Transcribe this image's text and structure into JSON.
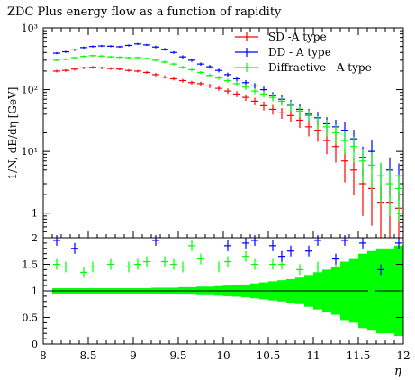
{
  "chart_data": [
    {
      "type": "line",
      "title": "ZDC Plus energy flow as a function of rapidity",
      "ylabel": "1/N, dE/dη [GeV]",
      "yscale": "log",
      "ylim": [
        0.4,
        1000
      ],
      "xlim": [
        8,
        12
      ],
      "y_ticks": [
        {
          "label": "1",
          "value": 1
        },
        {
          "label": "10¹",
          "value": 10
        },
        {
          "label": "10²",
          "value": 100
        },
        {
          "label": "10³",
          "value": 1000
        }
      ],
      "legend_position": "top-right",
      "series": [
        {
          "name": "SD -A type",
          "color": "#ff0000",
          "x": [
            8.15,
            8.25,
            8.35,
            8.45,
            8.55,
            8.65,
            8.75,
            8.85,
            8.95,
            9.05,
            9.15,
            9.25,
            9.35,
            9.45,
            9.55,
            9.65,
            9.75,
            9.85,
            9.95,
            10.05,
            10.15,
            10.25,
            10.35,
            10.45,
            10.55,
            10.65,
            10.75,
            10.85,
            10.95,
            11.05,
            11.15,
            11.25,
            11.35,
            11.45,
            11.55,
            11.65,
            11.75,
            11.85,
            11.95
          ],
          "y": [
            200,
            205,
            215,
            225,
            230,
            225,
            220,
            215,
            205,
            200,
            190,
            175,
            160,
            150,
            140,
            130,
            125,
            115,
            105,
            95,
            85,
            75,
            65,
            55,
            48,
            42,
            38,
            32,
            25,
            22,
            15,
            12,
            7,
            5,
            3,
            2.5,
            1.5,
            1.5,
            1.2
          ],
          "yerr_rel": [
            0.05,
            0.05,
            0.05,
            0.05,
            0.05,
            0.05,
            0.05,
            0.05,
            0.05,
            0.05,
            0.05,
            0.06,
            0.06,
            0.06,
            0.07,
            0.07,
            0.08,
            0.08,
            0.09,
            0.1,
            0.11,
            0.12,
            0.14,
            0.16,
            0.18,
            0.2,
            0.22,
            0.25,
            0.3,
            0.35,
            0.4,
            0.45,
            0.55,
            0.6,
            0.7,
            0.75,
            0.8,
            0.8,
            0.85
          ]
        },
        {
          "name": "DD - A type",
          "color": "#0000ff",
          "x": [
            8.15,
            8.25,
            8.35,
            8.45,
            8.55,
            8.65,
            8.75,
            8.85,
            8.95,
            9.05,
            9.15,
            9.25,
            9.35,
            9.45,
            9.55,
            9.65,
            9.75,
            9.85,
            9.95,
            10.05,
            10.15,
            10.25,
            10.35,
            10.45,
            10.55,
            10.65,
            10.75,
            10.85,
            10.95,
            11.05,
            11.15,
            11.25,
            11.35,
            11.45,
            11.55,
            11.65,
            11.75,
            11.85,
            11.95
          ],
          "y": [
            390,
            410,
            440,
            480,
            500,
            510,
            505,
            495,
            520,
            550,
            530,
            490,
            450,
            400,
            340,
            300,
            260,
            235,
            205,
            175,
            150,
            130,
            115,
            100,
            80,
            70,
            58,
            48,
            40,
            35,
            28,
            25,
            22,
            16,
            8,
            10,
            4,
            5,
            4
          ],
          "yerr_rel": [
            0.04,
            0.04,
            0.04,
            0.04,
            0.04,
            0.04,
            0.04,
            0.04,
            0.04,
            0.04,
            0.04,
            0.05,
            0.05,
            0.05,
            0.06,
            0.06,
            0.06,
            0.07,
            0.07,
            0.08,
            0.09,
            0.1,
            0.11,
            0.12,
            0.14,
            0.16,
            0.18,
            0.2,
            0.22,
            0.25,
            0.28,
            0.3,
            0.35,
            0.4,
            0.5,
            0.5,
            0.6,
            0.6,
            0.6
          ]
        },
        {
          "name": "Diffractive - A type",
          "color": "#00ff00",
          "x": [
            8.15,
            8.25,
            8.35,
            8.45,
            8.55,
            8.65,
            8.75,
            8.85,
            8.95,
            9.05,
            9.15,
            9.25,
            9.35,
            9.45,
            9.55,
            9.65,
            9.75,
            9.85,
            9.95,
            10.05,
            10.15,
            10.25,
            10.35,
            10.45,
            10.55,
            10.65,
            10.75,
            10.85,
            10.95,
            11.05,
            11.15,
            11.25,
            11.35,
            11.45,
            11.55,
            11.65,
            11.75,
            11.85,
            11.95
          ],
          "y": [
            300,
            310,
            330,
            345,
            355,
            350,
            340,
            335,
            330,
            330,
            320,
            300,
            280,
            260,
            230,
            210,
            190,
            170,
            155,
            140,
            125,
            110,
            95,
            85,
            75,
            65,
            55,
            45,
            38,
            30,
            25,
            20,
            15,
            12,
            7,
            6,
            4,
            3,
            2.5
          ],
          "yerr_rel": [
            0.04,
            0.04,
            0.04,
            0.04,
            0.04,
            0.04,
            0.04,
            0.04,
            0.04,
            0.04,
            0.04,
            0.05,
            0.05,
            0.05,
            0.06,
            0.06,
            0.06,
            0.07,
            0.07,
            0.08,
            0.09,
            0.1,
            0.11,
            0.12,
            0.14,
            0.16,
            0.18,
            0.2,
            0.22,
            0.25,
            0.3,
            0.35,
            0.4,
            0.45,
            0.55,
            0.6,
            0.65,
            0.7,
            0.7
          ]
        }
      ]
    },
    {
      "type": "area",
      "xlabel": "η",
      "xlim": [
        8,
        12
      ],
      "ylim": [
        0,
        2
      ],
      "x_ticks": [
        "8",
        "8.5",
        "9",
        "9.5",
        "10",
        "10.5",
        "11",
        "11.5",
        "12"
      ],
      "y_ticks": [
        "0",
        "0.5",
        "1",
        "1.5",
        "2"
      ],
      "reference_line": 1,
      "band": {
        "color": "#00ff00",
        "x": [
          8.15,
          8.25,
          8.35,
          8.45,
          8.55,
          8.65,
          8.75,
          8.85,
          8.95,
          9.05,
          9.15,
          9.25,
          9.35,
          9.45,
          9.55,
          9.65,
          9.75,
          9.85,
          9.95,
          10.05,
          10.15,
          10.25,
          10.35,
          10.45,
          10.55,
          10.65,
          10.75,
          10.85,
          10.95,
          11.05,
          11.15,
          11.25,
          11.35,
          11.45,
          11.55,
          11.65,
          11.75,
          11.85,
          11.95
        ],
        "err": [
          0.05,
          0.05,
          0.05,
          0.05,
          0.05,
          0.05,
          0.05,
          0.05,
          0.05,
          0.05,
          0.05,
          0.06,
          0.06,
          0.06,
          0.07,
          0.07,
          0.08,
          0.08,
          0.09,
          0.1,
          0.11,
          0.12,
          0.14,
          0.16,
          0.18,
          0.2,
          0.22,
          0.25,
          0.3,
          0.35,
          0.4,
          0.45,
          0.55,
          0.6,
          0.7,
          0.75,
          0.8,
          0.8,
          0.85
        ]
      },
      "series": [
        {
          "color": "#00ff00",
          "x": [
            8.15,
            8.25,
            8.45,
            8.55,
            8.75,
            8.95,
            9.05,
            9.15,
            9.35,
            9.45,
            9.55,
            9.65,
            9.75,
            9.95,
            10.05,
            10.25,
            10.35,
            10.55,
            10.65,
            10.85,
            11.05,
            11.15,
            11.25,
            11.45,
            11.65,
            11.85
          ],
          "y": [
            1.5,
            1.45,
            1.35,
            1.45,
            1.5,
            1.45,
            1.5,
            1.55,
            1.55,
            1.5,
            1.45,
            1.85,
            1.6,
            1.45,
            1.55,
            1.65,
            1.5,
            1.5,
            1.5,
            1.4,
            1.45,
            1.2,
            1.4,
            1.3,
            1.0,
            1.4
          ]
        },
        {
          "color": "#0000ff",
          "x": [
            8.15,
            8.35,
            9.25,
            10.05,
            10.25,
            10.35,
            10.55,
            10.65,
            10.75,
            10.95,
            11.05,
            11.25,
            11.35,
            11.55,
            11.75,
            11.95
          ],
          "y": [
            1.95,
            1.8,
            1.95,
            1.85,
            1.9,
            1.95,
            1.85,
            1.65,
            1.75,
            1.75,
            1.95,
            1.6,
            1.95,
            1.9,
            1.4,
            1.9
          ]
        }
      ]
    }
  ]
}
